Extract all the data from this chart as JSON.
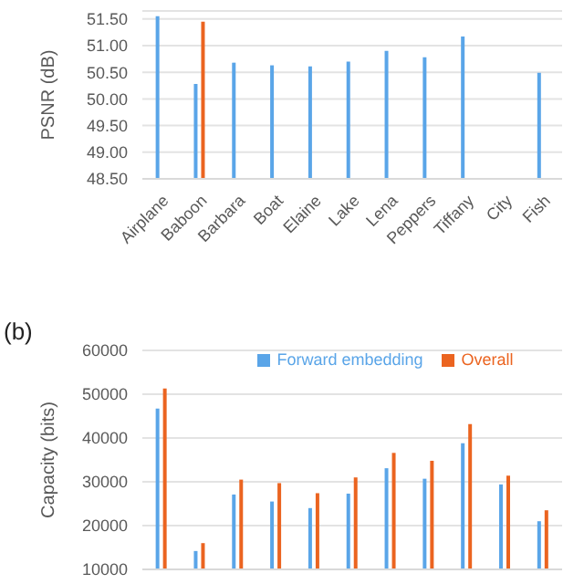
{
  "chart_data": [
    {
      "type": "bar",
      "ylabel": "PSNR (dB)",
      "categories": [
        "Airplane",
        "Baboon",
        "Barbara",
        "Boat",
        "Elaine",
        "Lake",
        "Lena",
        "Peppers",
        "Tiffany",
        "City",
        "Fish"
      ],
      "series": [
        {
          "color": "#5aa5e8",
          "values": [
            51.55,
            50.28,
            50.68,
            50.63,
            50.61,
            50.7,
            50.9,
            50.78,
            51.17,
            null,
            50.49
          ]
        },
        {
          "color": "#eb6420",
          "values": [
            null,
            51.45,
            null,
            null,
            null,
            null,
            null,
            null,
            null,
            null,
            null
          ]
        }
      ],
      "ylim": [
        48.5,
        51.65
      ],
      "yticks": [
        {
          "value": 48.5,
          "label": "48.50"
        },
        {
          "value": 49,
          "label": "49.00"
        },
        {
          "value": 49.5,
          "label": "49.50"
        },
        {
          "value": 50,
          "label": "50.00"
        },
        {
          "value": 50.5,
          "label": "50.50"
        },
        {
          "value": 51,
          "label": "51.00"
        },
        {
          "value": 51.5,
          "label": "51.50"
        }
      ],
      "grid": "y"
    },
    {
      "type": "bar",
      "title": "(b)",
      "ylabel": "Capacity (bits)",
      "categories": [
        null,
        null,
        null,
        null,
        null,
        null,
        null,
        null,
        null,
        null,
        null
      ],
      "series": [
        {
          "name": "Forward embedding",
          "color": "#5aa5e8",
          "values": [
            46700,
            14200,
            27100,
            25500,
            24000,
            27300,
            33100,
            30700,
            38800,
            29400,
            21000
          ]
        },
        {
          "name": "Overall",
          "color": "#eb6420",
          "values": [
            51300,
            16000,
            30500,
            29700,
            27400,
            31000,
            36600,
            34800,
            43200,
            31400,
            23500
          ]
        }
      ],
      "ylim": [
        10000,
        60000
      ],
      "yticks": [
        10000,
        20000,
        30000,
        40000,
        50000,
        60000
      ],
      "grid": "y",
      "legend": "top",
      "tick_labels": "y"
    }
  ]
}
